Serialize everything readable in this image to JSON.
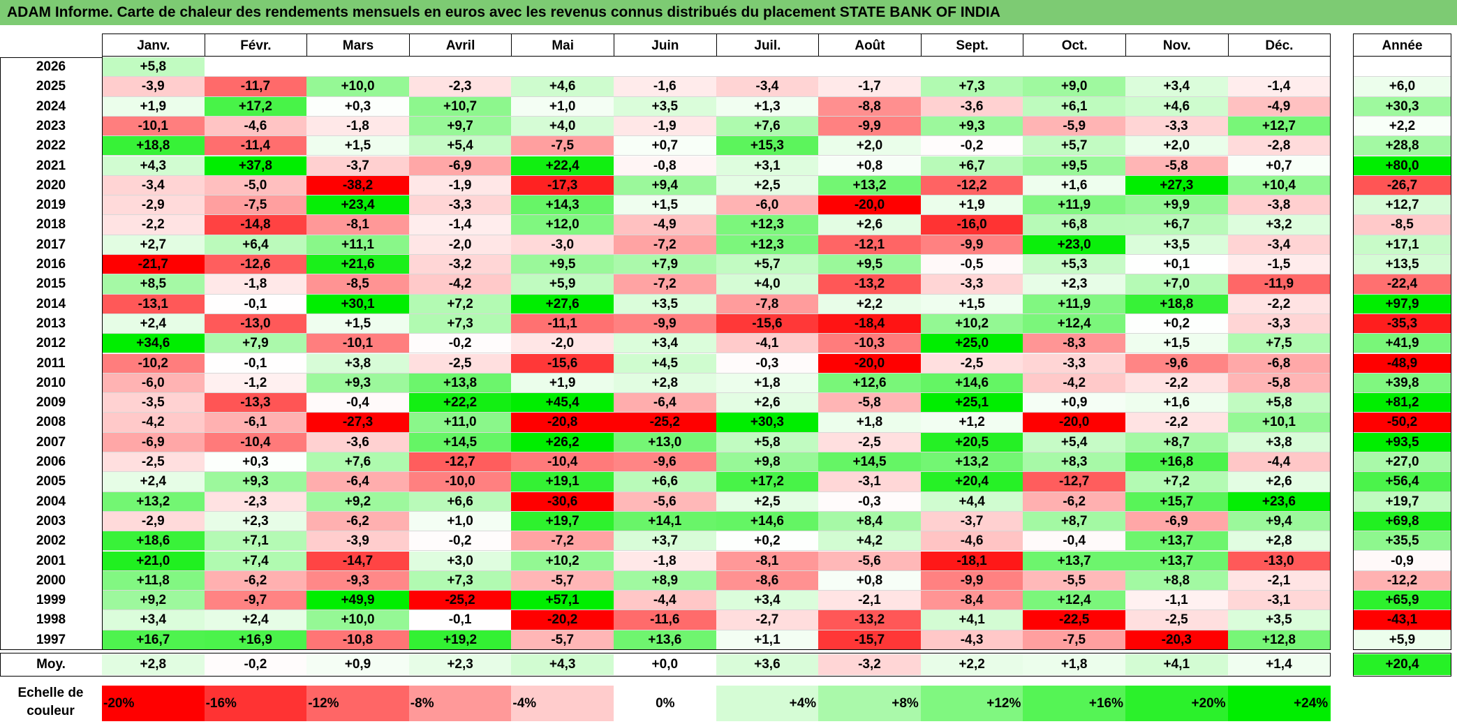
{
  "title": "ADAM Informe. Carte de chaleur des rendements mensuels en euros avec les revenus connus distribués du placement STATE BANK OF INDIA",
  "chart_data": {
    "type": "heatmap",
    "title": "ADAM Informe. Carte de chaleur des rendements mensuels en euros avec les revenus connus distribués du placement STATE BANK OF INDIA",
    "columns": [
      "Janv.",
      "Févr.",
      "Mars",
      "Avril",
      "Mai",
      "Juin",
      "Juil.",
      "Août",
      "Sept.",
      "Oct.",
      "Nov.",
      "Déc."
    ],
    "annual_header": "Année",
    "rows": [
      {
        "year": "2026",
        "values": [
          "+5,8",
          "",
          "",
          "",
          "",
          "",
          "",
          "",
          "",
          "",
          "",
          ""
        ],
        "annual": ""
      },
      {
        "year": "2025",
        "values": [
          "-3,9",
          "-11,7",
          "+10,0",
          "-2,3",
          "+4,6",
          "-1,6",
          "-3,4",
          "-1,7",
          "+7,3",
          "+9,0",
          "+3,4",
          "-1,4"
        ],
        "annual": "+6,0"
      },
      {
        "year": "2024",
        "values": [
          "+1,9",
          "+17,2",
          "+0,3",
          "+10,7",
          "+1,0",
          "+3,5",
          "+1,3",
          "-8,8",
          "-3,6",
          "+6,1",
          "+4,6",
          "-4,9"
        ],
        "annual": "+30,3"
      },
      {
        "year": "2023",
        "values": [
          "-10,1",
          "-4,6",
          "-1,8",
          "+9,7",
          "+4,0",
          "-1,9",
          "+7,6",
          "-9,9",
          "+9,3",
          "-5,9",
          "-3,3",
          "+12,7"
        ],
        "annual": "+2,2"
      },
      {
        "year": "2022",
        "values": [
          "+18,8",
          "-11,4",
          "+1,5",
          "+5,4",
          "-7,5",
          "+0,7",
          "+15,3",
          "+2,0",
          "-0,2",
          "+5,7",
          "+2,0",
          "-2,8"
        ],
        "annual": "+28,8"
      },
      {
        "year": "2021",
        "values": [
          "+4,3",
          "+37,8",
          "-3,7",
          "-6,9",
          "+22,4",
          "-0,8",
          "+3,1",
          "+0,8",
          "+6,7",
          "+9,5",
          "-5,8",
          "+0,7"
        ],
        "annual": "+80,0"
      },
      {
        "year": "2020",
        "values": [
          "-3,4",
          "-5,0",
          "-38,2",
          "-1,9",
          "-17,3",
          "+9,4",
          "+2,5",
          "+13,2",
          "-12,2",
          "+1,6",
          "+27,3",
          "+10,4"
        ],
        "annual": "-26,7"
      },
      {
        "year": "2019",
        "values": [
          "-2,9",
          "-7,5",
          "+23,4",
          "-3,3",
          "+14,3",
          "+1,5",
          "-6,0",
          "-20,0",
          "+1,9",
          "+11,9",
          "+9,9",
          "-3,8"
        ],
        "annual": "+12,7"
      },
      {
        "year": "2018",
        "values": [
          "-2,2",
          "-14,8",
          "-8,1",
          "-1,4",
          "+12,0",
          "-4,9",
          "+12,3",
          "+2,6",
          "-16,0",
          "+6,8",
          "+6,7",
          "+3,2"
        ],
        "annual": "-8,5"
      },
      {
        "year": "2017",
        "values": [
          "+2,7",
          "+6,4",
          "+11,1",
          "-2,0",
          "-3,0",
          "-7,2",
          "+12,3",
          "-12,1",
          "-9,9",
          "+23,0",
          "+3,5",
          "-3,4"
        ],
        "annual": "+17,1"
      },
      {
        "year": "2016",
        "values": [
          "-21,7",
          "-12,6",
          "+21,6",
          "-3,2",
          "+9,5",
          "+7,9",
          "+5,7",
          "+9,5",
          "-0,5",
          "+5,3",
          "+0,1",
          "-1,5"
        ],
        "annual": "+13,5"
      },
      {
        "year": "2015",
        "values": [
          "+8,5",
          "-1,8",
          "-8,5",
          "-4,2",
          "+5,9",
          "-7,2",
          "+4,0",
          "-13,2",
          "-3,3",
          "+2,3",
          "+7,0",
          "-11,9"
        ],
        "annual": "-22,4"
      },
      {
        "year": "2014",
        "values": [
          "-13,1",
          "-0,1",
          "+30,1",
          "+7,2",
          "+27,6",
          "+3,5",
          "-7,8",
          "+2,2",
          "+1,5",
          "+11,9",
          "+18,8",
          "-2,2"
        ],
        "annual": "+97,9"
      },
      {
        "year": "2013",
        "values": [
          "+2,4",
          "-13,0",
          "+1,5",
          "+7,3",
          "-11,1",
          "-9,9",
          "-15,6",
          "-18,4",
          "+10,2",
          "+12,4",
          "+0,2",
          "-3,3"
        ],
        "annual": "-35,3"
      },
      {
        "year": "2012",
        "values": [
          "+34,6",
          "+7,9",
          "-10,1",
          "-0,2",
          "-2,0",
          "+3,4",
          "-4,1",
          "-10,3",
          "+25,0",
          "-8,3",
          "+1,5",
          "+7,5"
        ],
        "annual": "+41,9"
      },
      {
        "year": "2011",
        "values": [
          "-10,2",
          "-0,1",
          "+3,8",
          "-2,5",
          "-15,6",
          "+4,5",
          "-0,3",
          "-20,0",
          "-2,5",
          "-3,3",
          "-9,6",
          "-6,8"
        ],
        "annual": "-48,9"
      },
      {
        "year": "2010",
        "values": [
          "-6,0",
          "-1,2",
          "+9,3",
          "+13,8",
          "+1,9",
          "+2,8",
          "+1,8",
          "+12,6",
          "+14,6",
          "-4,2",
          "-2,2",
          "-5,8"
        ],
        "annual": "+39,8"
      },
      {
        "year": "2009",
        "values": [
          "-3,5",
          "-13,3",
          "-0,4",
          "+22,2",
          "+45,4",
          "-6,4",
          "+2,6",
          "-5,8",
          "+25,1",
          "+0,9",
          "+1,6",
          "+5,8"
        ],
        "annual": "+81,2"
      },
      {
        "year": "2008",
        "values": [
          "-4,2",
          "-6,1",
          "-27,3",
          "+11,0",
          "-20,8",
          "-25,2",
          "+30,3",
          "+1,8",
          "+1,2",
          "-20,0",
          "-2,2",
          "+10,1"
        ],
        "annual": "-50,2"
      },
      {
        "year": "2007",
        "values": [
          "-6,9",
          "-10,4",
          "-3,6",
          "+14,5",
          "+26,2",
          "+13,0",
          "+5,8",
          "-2,5",
          "+20,5",
          "+5,4",
          "+8,7",
          "+3,8"
        ],
        "annual": "+93,5"
      },
      {
        "year": "2006",
        "values": [
          "-2,5",
          "+0,3",
          "+7,6",
          "-12,7",
          "-10,4",
          "-9,6",
          "+9,8",
          "+14,5",
          "+13,2",
          "+8,3",
          "+16,8",
          "-4,4"
        ],
        "annual": "+27,0"
      },
      {
        "year": "2005",
        "values": [
          "+2,4",
          "+9,3",
          "-6,4",
          "-10,0",
          "+19,1",
          "+6,6",
          "+17,2",
          "-3,1",
          "+20,4",
          "-12,7",
          "+7,2",
          "+2,6"
        ],
        "annual": "+56,4"
      },
      {
        "year": "2004",
        "values": [
          "+13,2",
          "-2,3",
          "+9,2",
          "+6,6",
          "-30,6",
          "-5,6",
          "+2,5",
          "-0,3",
          "+4,4",
          "-6,2",
          "+15,7",
          "+23,6"
        ],
        "annual": "+19,7"
      },
      {
        "year": "2003",
        "values": [
          "-2,9",
          "+2,3",
          "-6,2",
          "+1,0",
          "+19,7",
          "+14,1",
          "+14,6",
          "+8,4",
          "-3,7",
          "+8,7",
          "-6,9",
          "+9,4"
        ],
        "annual": "+69,8"
      },
      {
        "year": "2002",
        "values": [
          "+18,6",
          "+7,1",
          "-3,9",
          "-0,2",
          "-7,2",
          "+3,7",
          "+0,2",
          "+4,2",
          "-4,6",
          "-0,4",
          "+13,7",
          "+2,8"
        ],
        "annual": "+35,5"
      },
      {
        "year": "2001",
        "values": [
          "+21,0",
          "+7,4",
          "-14,7",
          "+3,0",
          "+10,2",
          "-1,8",
          "-8,1",
          "-5,6",
          "-18,1",
          "+13,7",
          "+13,7",
          "-13,0"
        ],
        "annual": "-0,9"
      },
      {
        "year": "2000",
        "values": [
          "+11,8",
          "-6,2",
          "-9,3",
          "+7,3",
          "-5,7",
          "+8,9",
          "-8,6",
          "+0,8",
          "-9,9",
          "-5,5",
          "+8,8",
          "-2,1"
        ],
        "annual": "-12,2"
      },
      {
        "year": "1999",
        "values": [
          "+9,2",
          "-9,7",
          "+49,9",
          "-25,2",
          "+57,1",
          "-4,4",
          "+3,4",
          "-2,1",
          "-8,4",
          "+12,4",
          "-1,1",
          "-3,1"
        ],
        "annual": "+65,9"
      },
      {
        "year": "1998",
        "values": [
          "+3,4",
          "+2,4",
          "+10,0",
          "-0,1",
          "-20,2",
          "-11,6",
          "-2,7",
          "-13,2",
          "+4,1",
          "-22,5",
          "-2,5",
          "+3,5"
        ],
        "annual": "-43,1"
      },
      {
        "year": "1997",
        "values": [
          "+16,7",
          "+16,9",
          "-10,8",
          "+19,2",
          "-5,7",
          "+13,6",
          "+1,1",
          "-15,7",
          "-4,3",
          "-7,5",
          "-20,3",
          "+12,8"
        ],
        "annual": "+5,9"
      }
    ],
    "average": {
      "label": "Moy.",
      "values": [
        "+2,8",
        "-0,2",
        "+0,9",
        "+2,3",
        "+4,3",
        "+0,0",
        "+3,6",
        "-3,2",
        "+2,2",
        "+1,8",
        "+4,1",
        "+1,4"
      ],
      "annual": "+20,4"
    },
    "scale": {
      "label_line1": "Echelle de",
      "label_line2": "couleur",
      "items": [
        "-20%",
        "-16%",
        "-12%",
        "-8%",
        "-4%",
        "0%",
        "+4%",
        "+8%",
        "+12%",
        "+16%",
        "+20%",
        "+24%"
      ]
    },
    "colors": {
      "neg_max": "#ff0000",
      "neutral": "#ffffff",
      "pos_max": "#00ee00",
      "title_bg": "#7dcb73"
    }
  }
}
